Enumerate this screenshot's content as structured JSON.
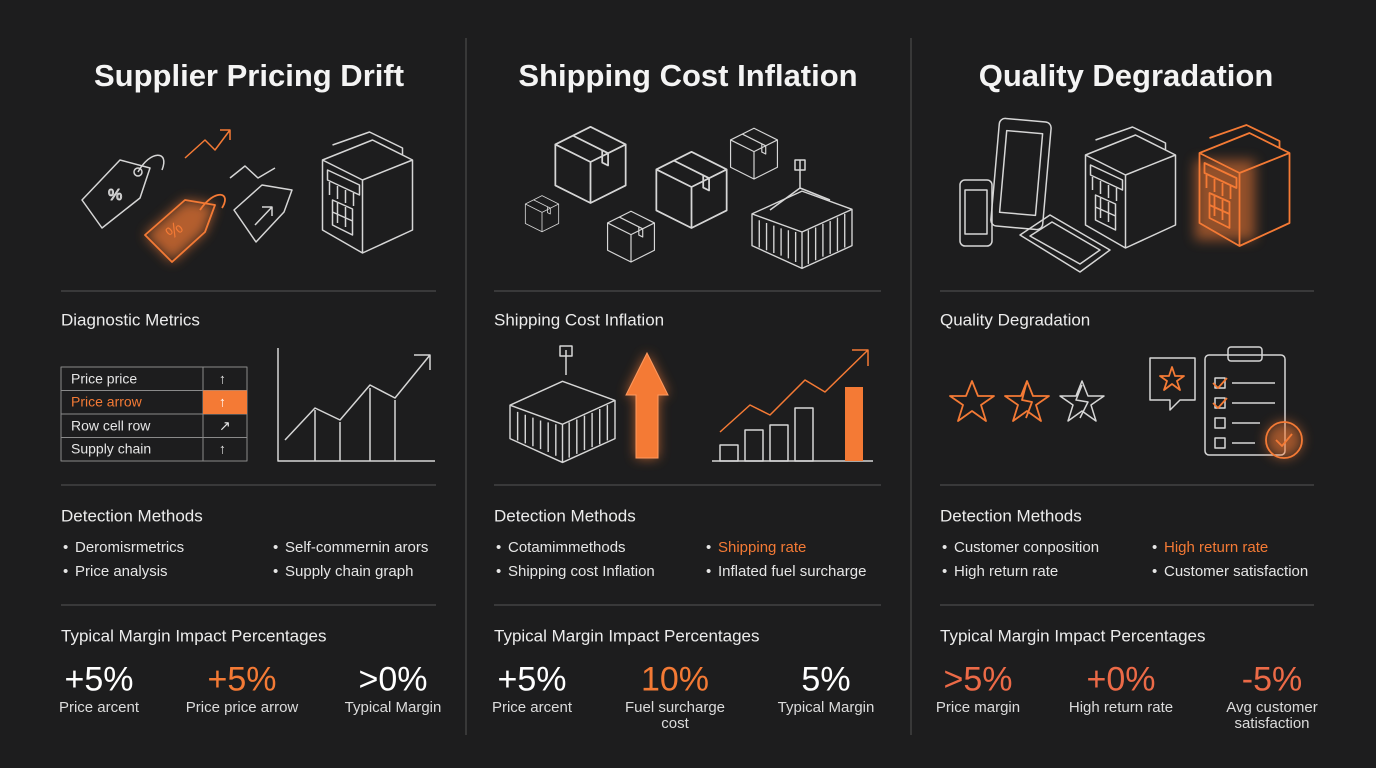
{
  "panels": [
    {
      "title": "Supplier Pricing Drift",
      "metrics_heading": "Diagnostic Metrics",
      "metrics_table": [
        {
          "cells": [
            "Price price",
            "↑"
          ],
          "color": "#e6e6e6"
        },
        {
          "cells": [
            "Price arrow",
            "↑"
          ],
          "color": "#f47a35"
        },
        {
          "cells": [
            "Row cell row",
            "↗"
          ],
          "color": "#e6e6e6"
        },
        {
          "cells": [
            "Supply chain",
            "↑"
          ],
          "color": "#e6e6e6"
        }
      ],
      "detection_heading": "Detection Methods",
      "detection_methods": [
        {
          "text": "Deromisrmetrics",
          "color": "#e6e6e6"
        },
        {
          "text": "Price analysis",
          "color": "#e6e6e6"
        },
        {
          "text": "Self-commernin arors",
          "color": "#e6e6e6"
        },
        {
          "text": "Supply chain graph",
          "color": "#e6e6e6"
        }
      ],
      "impact_heading": "Typical Margin Impact Percentages",
      "impacts": [
        {
          "value": "+5%",
          "label": "Price arcent",
          "color": "#ffffff"
        },
        {
          "value": "+5%",
          "label": "Price price arrow",
          "color": "#f47a35"
        },
        {
          "value": ">0%",
          "label": "Typical Margin",
          "color": "#ffffff"
        }
      ]
    },
    {
      "title": "Shipping Cost Inflation",
      "metrics_heading": "Shipping Cost Inflation",
      "detection_heading": "Detection Methods",
      "detection_methods": [
        {
          "text": "Cotamimmethods",
          "color": "#e6e6e6"
        },
        {
          "text": "Shipping cost Inflation",
          "color": "#e6e6e6"
        },
        {
          "text": "Shipping rate",
          "color": "#f47a35"
        },
        {
          "text": "Inflated fuel surcharge",
          "color": "#e6e6e6"
        }
      ],
      "impact_heading": "Typical Margin Impact Percentages",
      "impacts": [
        {
          "value": "+5%",
          "label": "Price arcent",
          "color": "#ffffff"
        },
        {
          "value": "10%",
          "label": "Fuel surcharge cost",
          "color": "#f47a35"
        },
        {
          "value": "5%",
          "label": "Typical Margin",
          "color": "#ffffff"
        }
      ]
    },
    {
      "title": "Quality Degradation",
      "metrics_heading": "Quality Degradation",
      "detection_heading": "Detection Methods",
      "detection_methods": [
        {
          "text": "Customer conposition",
          "color": "#e6e6e6"
        },
        {
          "text": "High return rate",
          "color": "#e6e6e6"
        },
        {
          "text": "High return rate",
          "color": "#f47a35"
        },
        {
          "text": "Customer satisfaction",
          "color": "#e6e6e6"
        }
      ],
      "impact_heading": "Typical Margin Impact Percentages",
      "impacts": [
        {
          "value": ">5%",
          "label": "Price margin",
          "color": "#ec6a47"
        },
        {
          "value": "+0%",
          "label": "High return rate",
          "color": "#ec6a47"
        },
        {
          "value": "-5%",
          "label": "Avg customer satisfaction",
          "color": "#ec6a47"
        }
      ]
    }
  ]
}
